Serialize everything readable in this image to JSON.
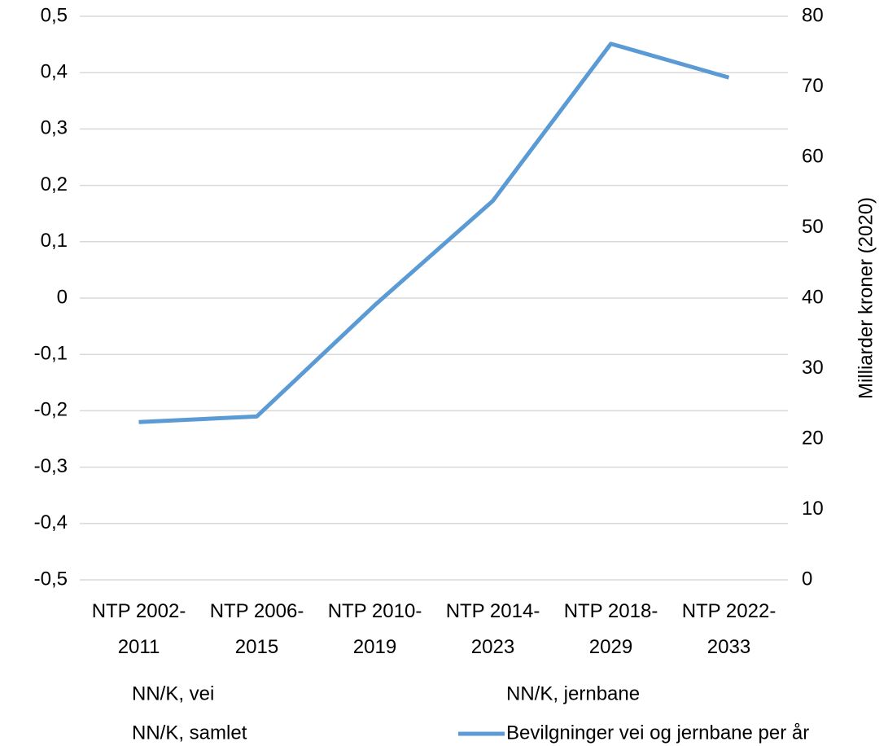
{
  "chart_data": {
    "type": "line",
    "categories": [
      "NTP 2002-2011",
      "NTP 2006-2015",
      "NTP 2010-2019",
      "NTP 2014-2023",
      "NTP 2018-2029",
      "NTP 2022-2033"
    ],
    "series": [
      {
        "name": "NN/K, vei",
        "values": [
          null,
          null,
          null,
          null,
          null,
          null
        ]
      },
      {
        "name": "NN/K, jernbane",
        "values": [
          null,
          null,
          null,
          null,
          null,
          null
        ]
      },
      {
        "name": "NN/K, samlet",
        "values": [
          null,
          null,
          null,
          null,
          null,
          null
        ]
      },
      {
        "name": "Bevilgninger vei og jernbane per år",
        "color": "#5b9bd5",
        "axis": "y2",
        "values": [
          22.4,
          23.2,
          39.0,
          53.8,
          76.1,
          71.3
        ]
      }
    ],
    "ylim": [
      -0.5,
      0.5
    ],
    "yticks": [
      {
        "value": -0.5,
        "label": "-0,5"
      },
      {
        "value": -0.4,
        "label": "-0,4"
      },
      {
        "value": -0.3,
        "label": "-0,3"
      },
      {
        "value": -0.2,
        "label": "-0,2"
      },
      {
        "value": -0.1,
        "label": "-0,1"
      },
      0,
      {
        "value": 0.1,
        "label": "0,1"
      },
      {
        "value": 0.2,
        "label": "0,2"
      },
      {
        "value": 0.3,
        "label": "0,3"
      },
      {
        "value": 0.4,
        "label": "0,4"
      },
      {
        "value": 0.5,
        "label": "0,5"
      }
    ],
    "y2lim": [
      0,
      80
    ],
    "y2ticks": [
      0,
      10,
      20,
      30,
      40,
      50,
      60,
      70,
      80
    ],
    "y2label": "Milliarder kroner (2020)",
    "grid": true,
    "legend": "bottom"
  }
}
